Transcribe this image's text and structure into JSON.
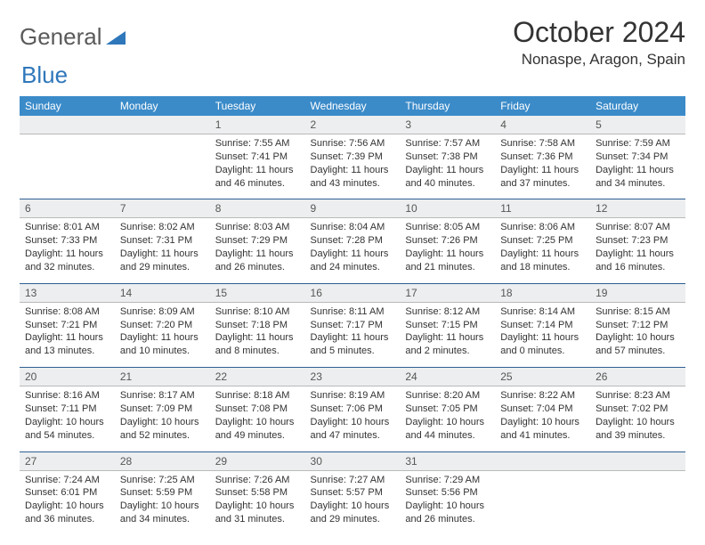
{
  "brand": {
    "word1": "General",
    "word2": "Blue"
  },
  "title": "October 2024",
  "location": "Nonaspe, Aragon, Spain",
  "colors": {
    "header_bg": "#3b8bc9",
    "header_text": "#ffffff",
    "daynum_bg": "#eceeef",
    "daynum_text": "#565656",
    "cell_border": "#2f5f93",
    "brand_blue": "#2f77bb"
  },
  "dow": [
    "Sunday",
    "Monday",
    "Tuesday",
    "Wednesday",
    "Thursday",
    "Friday",
    "Saturday"
  ],
  "weeks": [
    {
      "nums": [
        "",
        "",
        "1",
        "2",
        "3",
        "4",
        "5"
      ],
      "cells": [
        {},
        {},
        {
          "sunrise": "Sunrise: 7:55 AM",
          "sunset": "Sunset: 7:41 PM",
          "day1": "Daylight: 11 hours",
          "day2": "and 46 minutes."
        },
        {
          "sunrise": "Sunrise: 7:56 AM",
          "sunset": "Sunset: 7:39 PM",
          "day1": "Daylight: 11 hours",
          "day2": "and 43 minutes."
        },
        {
          "sunrise": "Sunrise: 7:57 AM",
          "sunset": "Sunset: 7:38 PM",
          "day1": "Daylight: 11 hours",
          "day2": "and 40 minutes."
        },
        {
          "sunrise": "Sunrise: 7:58 AM",
          "sunset": "Sunset: 7:36 PM",
          "day1": "Daylight: 11 hours",
          "day2": "and 37 minutes."
        },
        {
          "sunrise": "Sunrise: 7:59 AM",
          "sunset": "Sunset: 7:34 PM",
          "day1": "Daylight: 11 hours",
          "day2": "and 34 minutes."
        }
      ]
    },
    {
      "nums": [
        "6",
        "7",
        "8",
        "9",
        "10",
        "11",
        "12"
      ],
      "cells": [
        {
          "sunrise": "Sunrise: 8:01 AM",
          "sunset": "Sunset: 7:33 PM",
          "day1": "Daylight: 11 hours",
          "day2": "and 32 minutes."
        },
        {
          "sunrise": "Sunrise: 8:02 AM",
          "sunset": "Sunset: 7:31 PM",
          "day1": "Daylight: 11 hours",
          "day2": "and 29 minutes."
        },
        {
          "sunrise": "Sunrise: 8:03 AM",
          "sunset": "Sunset: 7:29 PM",
          "day1": "Daylight: 11 hours",
          "day2": "and 26 minutes."
        },
        {
          "sunrise": "Sunrise: 8:04 AM",
          "sunset": "Sunset: 7:28 PM",
          "day1": "Daylight: 11 hours",
          "day2": "and 24 minutes."
        },
        {
          "sunrise": "Sunrise: 8:05 AM",
          "sunset": "Sunset: 7:26 PM",
          "day1": "Daylight: 11 hours",
          "day2": "and 21 minutes."
        },
        {
          "sunrise": "Sunrise: 8:06 AM",
          "sunset": "Sunset: 7:25 PM",
          "day1": "Daylight: 11 hours",
          "day2": "and 18 minutes."
        },
        {
          "sunrise": "Sunrise: 8:07 AM",
          "sunset": "Sunset: 7:23 PM",
          "day1": "Daylight: 11 hours",
          "day2": "and 16 minutes."
        }
      ]
    },
    {
      "nums": [
        "13",
        "14",
        "15",
        "16",
        "17",
        "18",
        "19"
      ],
      "cells": [
        {
          "sunrise": "Sunrise: 8:08 AM",
          "sunset": "Sunset: 7:21 PM",
          "day1": "Daylight: 11 hours",
          "day2": "and 13 minutes."
        },
        {
          "sunrise": "Sunrise: 8:09 AM",
          "sunset": "Sunset: 7:20 PM",
          "day1": "Daylight: 11 hours",
          "day2": "and 10 minutes."
        },
        {
          "sunrise": "Sunrise: 8:10 AM",
          "sunset": "Sunset: 7:18 PM",
          "day1": "Daylight: 11 hours",
          "day2": "and 8 minutes."
        },
        {
          "sunrise": "Sunrise: 8:11 AM",
          "sunset": "Sunset: 7:17 PM",
          "day1": "Daylight: 11 hours",
          "day2": "and 5 minutes."
        },
        {
          "sunrise": "Sunrise: 8:12 AM",
          "sunset": "Sunset: 7:15 PM",
          "day1": "Daylight: 11 hours",
          "day2": "and 2 minutes."
        },
        {
          "sunrise": "Sunrise: 8:14 AM",
          "sunset": "Sunset: 7:14 PM",
          "day1": "Daylight: 11 hours",
          "day2": "and 0 minutes."
        },
        {
          "sunrise": "Sunrise: 8:15 AM",
          "sunset": "Sunset: 7:12 PM",
          "day1": "Daylight: 10 hours",
          "day2": "and 57 minutes."
        }
      ]
    },
    {
      "nums": [
        "20",
        "21",
        "22",
        "23",
        "24",
        "25",
        "26"
      ],
      "cells": [
        {
          "sunrise": "Sunrise: 8:16 AM",
          "sunset": "Sunset: 7:11 PM",
          "day1": "Daylight: 10 hours",
          "day2": "and 54 minutes."
        },
        {
          "sunrise": "Sunrise: 8:17 AM",
          "sunset": "Sunset: 7:09 PM",
          "day1": "Daylight: 10 hours",
          "day2": "and 52 minutes."
        },
        {
          "sunrise": "Sunrise: 8:18 AM",
          "sunset": "Sunset: 7:08 PM",
          "day1": "Daylight: 10 hours",
          "day2": "and 49 minutes."
        },
        {
          "sunrise": "Sunrise: 8:19 AM",
          "sunset": "Sunset: 7:06 PM",
          "day1": "Daylight: 10 hours",
          "day2": "and 47 minutes."
        },
        {
          "sunrise": "Sunrise: 8:20 AM",
          "sunset": "Sunset: 7:05 PM",
          "day1": "Daylight: 10 hours",
          "day2": "and 44 minutes."
        },
        {
          "sunrise": "Sunrise: 8:22 AM",
          "sunset": "Sunset: 7:04 PM",
          "day1": "Daylight: 10 hours",
          "day2": "and 41 minutes."
        },
        {
          "sunrise": "Sunrise: 8:23 AM",
          "sunset": "Sunset: 7:02 PM",
          "day1": "Daylight: 10 hours",
          "day2": "and 39 minutes."
        }
      ]
    },
    {
      "nums": [
        "27",
        "28",
        "29",
        "30",
        "31",
        "",
        ""
      ],
      "cells": [
        {
          "sunrise": "Sunrise: 7:24 AM",
          "sunset": "Sunset: 6:01 PM",
          "day1": "Daylight: 10 hours",
          "day2": "and 36 minutes."
        },
        {
          "sunrise": "Sunrise: 7:25 AM",
          "sunset": "Sunset: 5:59 PM",
          "day1": "Daylight: 10 hours",
          "day2": "and 34 minutes."
        },
        {
          "sunrise": "Sunrise: 7:26 AM",
          "sunset": "Sunset: 5:58 PM",
          "day1": "Daylight: 10 hours",
          "day2": "and 31 minutes."
        },
        {
          "sunrise": "Sunrise: 7:27 AM",
          "sunset": "Sunset: 5:57 PM",
          "day1": "Daylight: 10 hours",
          "day2": "and 29 minutes."
        },
        {
          "sunrise": "Sunrise: 7:29 AM",
          "sunset": "Sunset: 5:56 PM",
          "day1": "Daylight: 10 hours",
          "day2": "and 26 minutes."
        },
        {},
        {}
      ]
    }
  ]
}
